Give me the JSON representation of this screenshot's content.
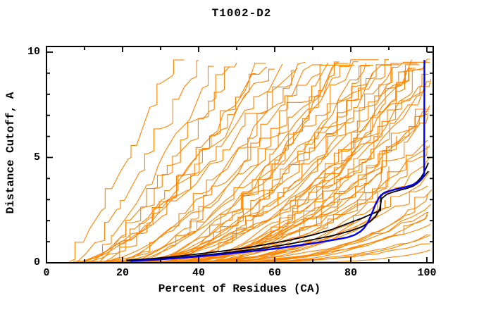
{
  "window": {
    "background": "#ffffff"
  },
  "chart_data": {
    "type": "line",
    "title": "T1002-D2",
    "xlabel": "Percent of Residues (CA)",
    "ylabel": "Distance Cutoff, A",
    "xlim": [
      0,
      101.7
    ],
    "ylim": [
      0,
      10.27
    ],
    "grid": false,
    "legend": "none",
    "x_axis": {
      "major_ticks": [
        0,
        20,
        40,
        60,
        80,
        100
      ],
      "minor_ticks": [
        10,
        30,
        50,
        70,
        90
      ]
    },
    "y_axis": {
      "major_ticks": [
        0,
        5,
        10
      ],
      "minor_ticks": [
        1,
        2,
        3,
        4,
        6,
        7,
        8,
        9
      ]
    },
    "colors": {
      "frame": "#000000",
      "model_pool": "#ff8400",
      "selected_models": "#000000",
      "best_model": "#0000ee"
    },
    "series": [
      {
        "name": "best-model-blue",
        "color": "#0000ee",
        "width": 2.4,
        "points": [
          [
            22,
            0.08
          ],
          [
            30,
            0.16
          ],
          [
            38,
            0.27
          ],
          [
            46,
            0.4
          ],
          [
            54,
            0.55
          ],
          [
            60,
            0.67
          ],
          [
            66,
            0.82
          ],
          [
            72,
            0.98
          ],
          [
            76,
            1.1
          ],
          [
            79,
            1.2
          ],
          [
            81,
            1.32
          ],
          [
            82.5,
            1.48
          ],
          [
            83.5,
            1.65
          ],
          [
            84.5,
            1.92
          ],
          [
            85.5,
            2.32
          ],
          [
            86.5,
            2.78
          ],
          [
            87.5,
            3.12
          ],
          [
            88.5,
            3.28
          ],
          [
            90,
            3.4
          ],
          [
            92,
            3.5
          ],
          [
            94,
            3.58
          ],
          [
            96,
            3.68
          ],
          [
            97.5,
            3.8
          ],
          [
            98.5,
            3.95
          ],
          [
            99,
            4.08
          ],
          [
            99.3,
            4.28
          ],
          [
            99.35,
            9.63
          ]
        ]
      },
      {
        "name": "selected-model-black-1",
        "color": "#000000",
        "width": 1.8,
        "points": [
          [
            21,
            0.12
          ],
          [
            28,
            0.2
          ],
          [
            34,
            0.3
          ],
          [
            40,
            0.42
          ],
          [
            46,
            0.55
          ],
          [
            52,
            0.7
          ],
          [
            58,
            0.88
          ],
          [
            64,
            1.08
          ],
          [
            70,
            1.32
          ],
          [
            75,
            1.58
          ],
          [
            80,
            1.92
          ],
          [
            83,
            2.12
          ],
          [
            85,
            2.28
          ],
          [
            87,
            2.42
          ],
          [
            87.8,
            2.5
          ],
          [
            87.9,
            3.22
          ],
          [
            89,
            3.35
          ],
          [
            91,
            3.45
          ],
          [
            93,
            3.53
          ],
          [
            95,
            3.63
          ],
          [
            96.5,
            3.73
          ],
          [
            97.5,
            3.86
          ],
          [
            98.5,
            4.06
          ],
          [
            99.3,
            4.3
          ],
          [
            99.9,
            4.55
          ],
          [
            100.4,
            4.75
          ]
        ]
      },
      {
        "name": "selected-model-black-2",
        "color": "#000000",
        "width": 1.8,
        "points": [
          [
            21,
            0.1
          ],
          [
            28,
            0.16
          ],
          [
            34,
            0.24
          ],
          [
            40,
            0.34
          ],
          [
            46,
            0.45
          ],
          [
            52,
            0.58
          ],
          [
            58,
            0.72
          ],
          [
            64,
            0.9
          ],
          [
            70,
            1.1
          ],
          [
            75,
            1.28
          ],
          [
            80,
            1.52
          ],
          [
            83,
            1.72
          ],
          [
            85,
            1.95
          ],
          [
            86.5,
            2.2
          ],
          [
            87.6,
            2.55
          ],
          [
            88.1,
            3.05
          ],
          [
            89.5,
            3.25
          ],
          [
            91,
            3.35
          ],
          [
            93,
            3.45
          ],
          [
            95,
            3.55
          ],
          [
            96.5,
            3.65
          ],
          [
            97.5,
            3.77
          ],
          [
            98.5,
            3.93
          ],
          [
            99.4,
            4.13
          ],
          [
            100.4,
            4.35
          ]
        ]
      }
    ],
    "model_pool_curves": {
      "color": "#ff8400",
      "width": 1.1,
      "count": 70,
      "y_saturation": 9.5,
      "format": [
        "x_start",
        "x_reach_top",
        "shape_exponent",
        "x_early_end_or_0"
      ],
      "params": [
        [
          6,
          34,
          1.1,
          0
        ],
        [
          8,
          40,
          1.2,
          0
        ],
        [
          10,
          44,
          1.35,
          0
        ],
        [
          12,
          50,
          1.25,
          0
        ],
        [
          9,
          55,
          1.5,
          0
        ],
        [
          14,
          48,
          1.1,
          0
        ],
        [
          16,
          55,
          1.3,
          0
        ],
        [
          7,
          58,
          1.6,
          0
        ],
        [
          11,
          62,
          1.4,
          0
        ],
        [
          15,
          60,
          1.2,
          0
        ],
        [
          18,
          65,
          1.5,
          0
        ],
        [
          20,
          68,
          1.3,
          0
        ],
        [
          13,
          70,
          1.7,
          0
        ],
        [
          22,
          72,
          1.4,
          0
        ],
        [
          17,
          75,
          1.8,
          0
        ],
        [
          25,
          74,
          1.3,
          0
        ],
        [
          21,
          78,
          1.6,
          0
        ],
        [
          28,
          80,
          1.4,
          0
        ],
        [
          24,
          77,
          1.9,
          0
        ],
        [
          10,
          84,
          2.0,
          0
        ],
        [
          26,
          82,
          1.5,
          0
        ],
        [
          30,
          85,
          1.6,
          0
        ],
        [
          19,
          88,
          2.2,
          0
        ],
        [
          32,
          86,
          1.4,
          0
        ],
        [
          23,
          90,
          1.8,
          0
        ],
        [
          35,
          92,
          1.5,
          0
        ],
        [
          27,
          94,
          2.0,
          0
        ],
        [
          38,
          95,
          1.6,
          0
        ],
        [
          31,
          96,
          2.3,
          0
        ],
        [
          40,
          97,
          1.7,
          0
        ],
        [
          34,
          98,
          1.9,
          0
        ],
        [
          42,
          99,
          1.5,
          0
        ],
        [
          29,
          100,
          2.5,
          0
        ],
        [
          12,
          104,
          2.2,
          0
        ],
        [
          36,
          105,
          1.8,
          0
        ],
        [
          20,
          108,
          2.6,
          0
        ],
        [
          44,
          106,
          1.6,
          0
        ],
        [
          25,
          112,
          2.4,
          0
        ],
        [
          33,
          110,
          2.0,
          0
        ],
        [
          16,
          116,
          3.0,
          0
        ],
        [
          39,
          115,
          2.2,
          0
        ],
        [
          28,
          120,
          2.8,
          0
        ],
        [
          45,
          118,
          2.0,
          0
        ],
        [
          22,
          126,
          3.2,
          0
        ],
        [
          37,
          124,
          2.6,
          0
        ],
        [
          30,
          132,
          3.4,
          0
        ],
        [
          41,
          130,
          2.8,
          0
        ],
        [
          26,
          138,
          3.6,
          0
        ],
        [
          43,
          136,
          3.0,
          0
        ],
        [
          35,
          145,
          3.8,
          0
        ],
        [
          24,
          150,
          4.0,
          0
        ],
        [
          18,
          142,
          3.3,
          0
        ],
        [
          14,
          120,
          2.6,
          88
        ],
        [
          34,
          118,
          2.2,
          90
        ],
        [
          21,
          128,
          3.0,
          87
        ],
        [
          38,
          112,
          1.9,
          92
        ],
        [
          29,
          125,
          2.7,
          89
        ],
        [
          44,
          155,
          4.2,
          0
        ],
        [
          12,
          160,
          4.5,
          0
        ],
        [
          8,
          66,
          1.5,
          0
        ],
        [
          33,
          88,
          1.7,
          0
        ],
        [
          19,
          93,
          2.1,
          0
        ],
        [
          36,
          102,
          1.8,
          0
        ],
        [
          27,
          109,
          2.2,
          0
        ],
        [
          15,
          96,
          2.4,
          0
        ],
        [
          31,
          76,
          1.5,
          0
        ],
        [
          23,
          84,
          1.9,
          0
        ],
        [
          42,
          128,
          2.9,
          0
        ],
        [
          9,
          150,
          3.8,
          0
        ],
        [
          40,
          108,
          2.0,
          0
        ]
      ]
    }
  }
}
